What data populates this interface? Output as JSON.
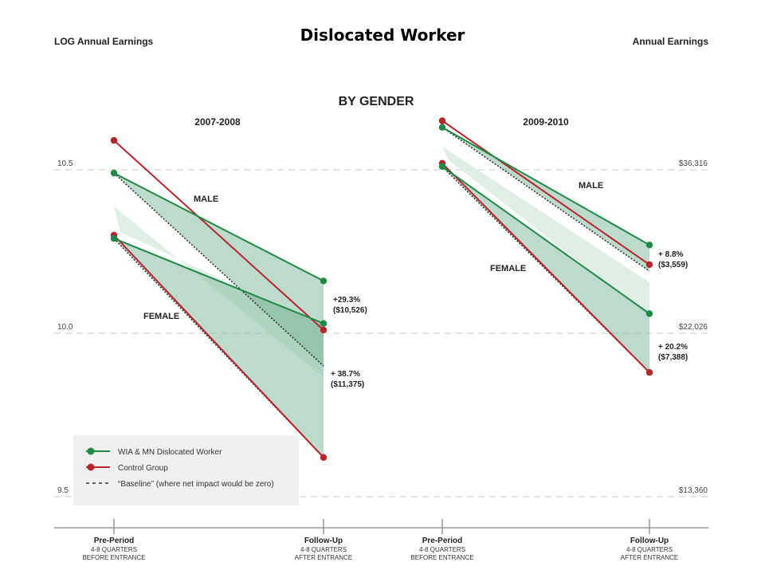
{
  "chart_data": {
    "type": "line",
    "title": "Dislocated Worker",
    "subtitle": "BY GENDER",
    "left_axis_label": "LOG Annual Earnings",
    "right_axis_label": "Annual Earnings",
    "left_ticks": [
      "10.5",
      "10.0",
      "9.5"
    ],
    "right_ticks": [
      "$36,316",
      "$22,026",
      "$13,360"
    ],
    "ylim": [
      9.5,
      10.5
    ],
    "grid": "dashed horizontal",
    "x_categories": [
      {
        "label": "Pre-Period",
        "sub1": "4-8 QUARTERS",
        "sub2": "BEFORE ENTRANCE"
      },
      {
        "label": "Follow-Up",
        "sub1": "4-8 QUARTERS",
        "sub2": "AFTER ENTRANCE"
      },
      {
        "label": "Pre-Period",
        "sub1": "4-8 QUARTERS",
        "sub2": "BEFORE ENTRANCE"
      },
      {
        "label": "Follow-Up",
        "sub1": "4-8 QUARTERS",
        "sub2": "AFTER ENTRANCE"
      }
    ],
    "legend": {
      "placement": "bottom-left",
      "items": [
        {
          "label": "WIA & MN Dislocated Worker",
          "color": "#1e8a45",
          "marker": "dot"
        },
        {
          "label": "Control Group",
          "color": "#b8242c",
          "marker": "dot"
        },
        {
          "label": "“Baseline” (where net impact would be zero)",
          "color": "#333333",
          "marker": "dashed"
        }
      ]
    },
    "colors": {
      "treatment": "#1e8a45",
      "control": "#b8242c",
      "fill_dark": "#7cb899",
      "fill_light": "#d6e8dd"
    },
    "panels": [
      {
        "period": "2007-2008",
        "groups": [
          {
            "label": "MALE",
            "treatment": [
              10.49,
              10.16
            ],
            "control": [
              10.59,
              10.01
            ],
            "baseline_end": 9.9,
            "annotation": [
              "+29.3%",
              "($10,526)"
            ]
          },
          {
            "label": "FEMALE",
            "treatment": [
              10.29,
              10.03
            ],
            "control": [
              10.3,
              9.62
            ],
            "baseline_end": 9.62,
            "annotation": [
              "+ 38.7%",
              "($11,375)"
            ]
          }
        ]
      },
      {
        "period": "2009-2010",
        "groups": [
          {
            "label": "MALE",
            "treatment": [
              10.63,
              10.27
            ],
            "control": [
              10.65,
              10.21
            ],
            "baseline_end": 10.19,
            "annotation": [
              "+ 8.8%",
              "($3,559)"
            ]
          },
          {
            "label": "FEMALE",
            "treatment": [
              10.51,
              10.06
            ],
            "control": [
              10.52,
              9.88
            ],
            "baseline_end": 9.88,
            "annotation": [
              "+ 20.2%",
              "($7,388)"
            ]
          }
        ]
      }
    ]
  }
}
